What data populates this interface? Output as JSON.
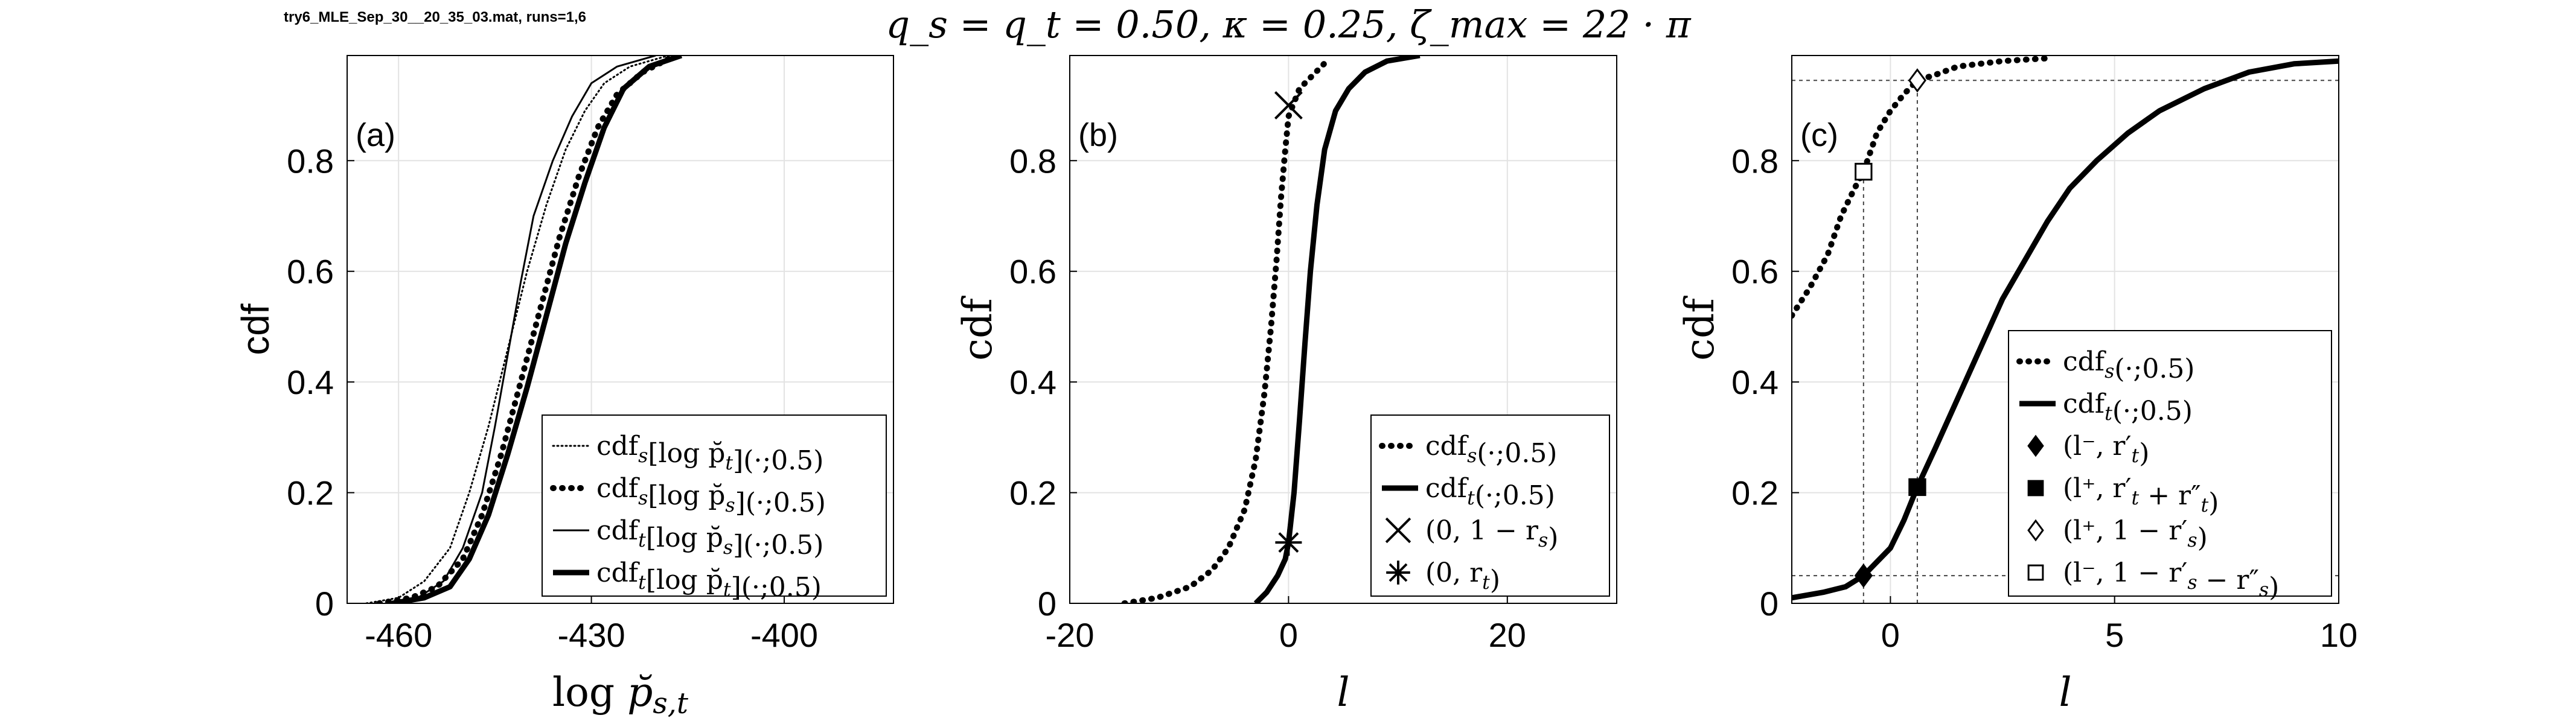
{
  "figure": {
    "suptitle": "q_s = q_t = 0.50,  κ = 0.25,  ζ_max = 22 · π",
    "file_label": "try6_MLE_Sep_30__20_35_03.mat, runs=1,6"
  },
  "chart_data": [
    {
      "panel": "(a)",
      "type": "line",
      "xlabel": "log p̆_{s,t}",
      "ylabel": "cdf",
      "xlim": [
        -468,
        -383
      ],
      "ylim": [
        0,
        0.99
      ],
      "xticks": [
        -460,
        -430,
        -400
      ],
      "xtick_labels": [
        "-460",
        "-430",
        "-400"
      ],
      "yticks": [
        0,
        0.2,
        0.4,
        0.6,
        0.8
      ],
      "ytick_labels": [
        "0",
        "0.2",
        "0.4",
        "0.6",
        "0.8"
      ],
      "grid": true,
      "legend_position": "lower-right",
      "series": [
        {
          "name": "cdf_s[log p̆_t](·;0.5)",
          "style": "dotted-thin",
          "points": [
            [
              -465,
              0
            ],
            [
              -460,
              0.01
            ],
            [
              -456,
              0.04
            ],
            [
              -452,
              0.1
            ],
            [
              -449,
              0.2
            ],
            [
              -446,
              0.32
            ],
            [
              -443,
              0.46
            ],
            [
              -440,
              0.6
            ],
            [
              -437,
              0.72
            ],
            [
              -434,
              0.82
            ],
            [
              -431,
              0.89
            ],
            [
              -428,
              0.94
            ],
            [
              -424,
              0.97
            ],
            [
              -418,
              0.99
            ]
          ]
        },
        {
          "name": "cdf_s[log p̆_s](·;0.5)",
          "style": "dotted-thick",
          "points": [
            [
              -463,
              0
            ],
            [
              -458,
              0.01
            ],
            [
              -454,
              0.03
            ],
            [
              -450,
              0.08
            ],
            [
              -447,
              0.16
            ],
            [
              -444,
              0.27
            ],
            [
              -441,
              0.4
            ],
            [
              -438,
              0.53
            ],
            [
              -435,
              0.66
            ],
            [
              -432,
              0.77
            ],
            [
              -429,
              0.86
            ],
            [
              -426,
              0.92
            ],
            [
              -422,
              0.96
            ],
            [
              -417,
              0.99
            ]
          ]
        },
        {
          "name": "cdf_t[log p̆_s](·;0.5)",
          "style": "solid-thin",
          "points": [
            [
              -462,
              0
            ],
            [
              -457,
              0.01
            ],
            [
              -453,
              0.04
            ],
            [
              -450,
              0.1
            ],
            [
              -447,
              0.2
            ],
            [
              -445,
              0.32
            ],
            [
              -443,
              0.45
            ],
            [
              -441,
              0.58
            ],
            [
              -439,
              0.7
            ],
            [
              -436,
              0.8
            ],
            [
              -433,
              0.88
            ],
            [
              -430,
              0.94
            ],
            [
              -426,
              0.97
            ],
            [
              -420,
              0.99
            ]
          ]
        },
        {
          "name": "cdf_t[log p̆_t](·;0.5)",
          "style": "solid-thick",
          "points": [
            [
              -461,
              0
            ],
            [
              -456,
              0.01
            ],
            [
              -452,
              0.03
            ],
            [
              -449,
              0.08
            ],
            [
              -446,
              0.16
            ],
            [
              -443,
              0.27
            ],
            [
              -440,
              0.39
            ],
            [
              -437,
              0.52
            ],
            [
              -434,
              0.65
            ],
            [
              -431,
              0.76
            ],
            [
              -428,
              0.86
            ],
            [
              -425,
              0.93
            ],
            [
              -421,
              0.97
            ],
            [
              -416,
              0.99
            ]
          ]
        }
      ]
    },
    {
      "panel": "(b)",
      "type": "line",
      "xlabel": "l",
      "ylabel": "cdf",
      "xlim": [
        -20,
        30
      ],
      "ylim": [
        0,
        0.99
      ],
      "xticks": [
        -20,
        0,
        20
      ],
      "xtick_labels": [
        "-20",
        "0",
        "20"
      ],
      "yticks": [
        0,
        0.2,
        0.4,
        0.6,
        0.8
      ],
      "ytick_labels": [
        "0",
        "0.2",
        "0.4",
        "0.6",
        "0.8"
      ],
      "grid": true,
      "legend_position": "lower-right",
      "series": [
        {
          "name": "cdf_s(·;0.5)",
          "style": "dotted-thick",
          "points": [
            [
              -15,
              0
            ],
            [
              -12,
              0.01
            ],
            [
              -9,
              0.03
            ],
            [
              -7,
              0.06
            ],
            [
              -5.5,
              0.1
            ],
            [
              -4,
              0.17
            ],
            [
              -3,
              0.26
            ],
            [
              -2.2,
              0.38
            ],
            [
              -1.6,
              0.5
            ],
            [
              -1.1,
              0.62
            ],
            [
              -0.7,
              0.73
            ],
            [
              -0.3,
              0.82
            ],
            [
              0,
              0.88
            ],
            [
              1,
              0.93
            ],
            [
              2.5,
              0.96
            ],
            [
              3.5,
              0.98
            ]
          ]
        },
        {
          "name": "cdf_t(·;0.5)",
          "style": "solid-thick",
          "points": [
            [
              -3,
              0
            ],
            [
              -2,
              0.02
            ],
            [
              -1,
              0.05
            ],
            [
              -0.3,
              0.08
            ],
            [
              0,
              0.11
            ],
            [
              0.5,
              0.2
            ],
            [
              1,
              0.33
            ],
            [
              1.5,
              0.47
            ],
            [
              2,
              0.6
            ],
            [
              2.6,
              0.72
            ],
            [
              3.3,
              0.82
            ],
            [
              4.3,
              0.89
            ],
            [
              5.5,
              0.93
            ],
            [
              7,
              0.96
            ],
            [
              9,
              0.98
            ],
            [
              12,
              0.99
            ]
          ]
        }
      ],
      "markers": [
        {
          "name": "(0, 1 − r_s)",
          "shape": "cross",
          "x": 0,
          "y": 0.9
        },
        {
          "name": "(0, r_t)",
          "shape": "asterisk",
          "x": 0,
          "y": 0.11
        }
      ]
    },
    {
      "panel": "(c)",
      "type": "line",
      "xlabel": "l",
      "ylabel": "cdf",
      "xlim": [
        -2.2,
        10
      ],
      "ylim": [
        0,
        0.99
      ],
      "xticks": [
        0,
        5,
        10
      ],
      "xtick_labels": [
        "0",
        "5",
        "10"
      ],
      "yticks": [
        0,
        0.2,
        0.4,
        0.6,
        0.8
      ],
      "ytick_labels": [
        "0",
        "0.2",
        "0.4",
        "0.6",
        "0.8"
      ],
      "grid": true,
      "legend_position": "lower-right",
      "series": [
        {
          "name": "cdf_s(·;0.5)",
          "style": "dotted-thick",
          "points": [
            [
              -2.2,
              0.52
            ],
            [
              -1.8,
              0.57
            ],
            [
              -1.4,
              0.63
            ],
            [
              -1.1,
              0.7
            ],
            [
              -0.8,
              0.75
            ],
            [
              -0.6,
              0.78
            ],
            [
              -0.3,
              0.85
            ],
            [
              0,
              0.89
            ],
            [
              0.3,
              0.92
            ],
            [
              0.6,
              0.945
            ],
            [
              1,
              0.955
            ],
            [
              1.5,
              0.97
            ],
            [
              2.5,
              0.98
            ],
            [
              3.5,
              0.985
            ]
          ]
        },
        {
          "name": "cdf_t(·;0.5)",
          "style": "solid-thick",
          "points": [
            [
              -2.2,
              0.01
            ],
            [
              -1.5,
              0.02
            ],
            [
              -1,
              0.03
            ],
            [
              -0.6,
              0.05
            ],
            [
              0,
              0.1
            ],
            [
              0.3,
              0.15
            ],
            [
              0.6,
              0.21
            ],
            [
              1,
              0.28
            ],
            [
              1.5,
              0.37
            ],
            [
              2,
              0.46
            ],
            [
              2.5,
              0.55
            ],
            [
              3,
              0.62
            ],
            [
              3.5,
              0.69
            ],
            [
              4,
              0.75
            ],
            [
              4.6,
              0.8
            ],
            [
              5.3,
              0.85
            ],
            [
              6,
              0.89
            ],
            [
              7,
              0.93
            ],
            [
              8,
              0.96
            ],
            [
              9,
              0.975
            ],
            [
              10,
              0.98
            ]
          ]
        }
      ],
      "markers": [
        {
          "name": "(l⁻, r′_t)",
          "shape": "diamond-filled",
          "x": -0.6,
          "y": 0.05
        },
        {
          "name": "(l⁺, r′_t + r″_t)",
          "shape": "square-filled",
          "x": 0.6,
          "y": 0.21
        },
        {
          "name": "(l⁺, 1 − r′_s)",
          "shape": "diamond-open",
          "x": 0.6,
          "y": 0.945
        },
        {
          "name": "(l⁻, 1 − r′_s − r″_s)",
          "shape": "square-open",
          "x": -0.6,
          "y": 0.78
        }
      ],
      "reference_lines": {
        "horizontal": [
          0.05,
          0.945
        ],
        "vertical": [
          -0.6,
          0.6
        ]
      }
    }
  ]
}
